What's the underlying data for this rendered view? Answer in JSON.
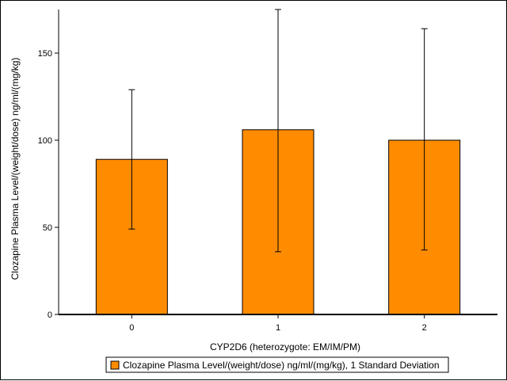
{
  "chart_data": {
    "type": "bar",
    "title": "",
    "xlabel": "CYP2D6 (heterozygote: EM/IM/PM)",
    "ylabel": "Clozapine Plasma Level/(weight/dose) ng/ml/(mg/kg)",
    "categories": [
      "0",
      "1",
      "2"
    ],
    "series": [
      {
        "name": "Clozapine Plasma Level/(weight/dose) ng/ml/(mg/kg), 1 Standard Deviation",
        "values": [
          89,
          106,
          100
        ],
        "error_low": [
          49,
          36,
          37
        ],
        "error_high": [
          129,
          175,
          164
        ],
        "color": "#ff8c00"
      }
    ],
    "ylim": [
      0,
      175
    ],
    "yticks": [
      0,
      50,
      100,
      150
    ],
    "grid": false,
    "legend_position": "bottom"
  }
}
